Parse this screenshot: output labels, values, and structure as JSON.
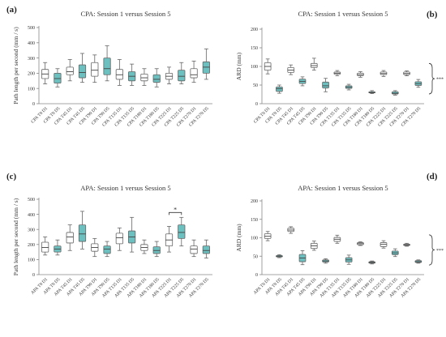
{
  "panel_labels": [
    "(a)",
    "(b)",
    "(c)",
    "(d)"
  ],
  "colors": {
    "box_white": "#ffffff",
    "box_teal": "#6cc0c0",
    "stroke": "#666666",
    "axis": "#888888"
  },
  "chart_data": [
    {
      "type": "boxplot",
      "title": "CPA: Session 1 versus Session 5",
      "ylabel": "Path length per second (mm / s)",
      "ylim": [
        0,
        500
      ],
      "yticks": [
        0,
        100,
        200,
        300,
        400,
        500
      ],
      "categories": [
        "CPA T0 D1",
        "CPA T0 D5",
        "CPA T45 D1",
        "CPA T45 D5",
        "CPA T90 D1",
        "CPA T90 D5",
        "CPA T135 D1",
        "CPA T135 D5",
        "CPA T180 D1",
        "CPA T180 D5",
        "CPA T225 D1",
        "CPA T225 D5",
        "CPA T270 D1",
        "CPA T270 D5"
      ],
      "groups": [
        "D1",
        "D5",
        "D1",
        "D5",
        "D1",
        "D5",
        "D1",
        "D5",
        "D1",
        "D5",
        "D1",
        "D5",
        "D1",
        "D5"
      ],
      "boxes": [
        {
          "min": 130,
          "q1": 165,
          "median": 195,
          "q3": 225,
          "max": 270
        },
        {
          "min": 110,
          "q1": 135,
          "median": 165,
          "q3": 200,
          "max": 230
        },
        {
          "min": 150,
          "q1": 190,
          "median": 210,
          "q3": 240,
          "max": 290
        },
        {
          "min": 140,
          "q1": 170,
          "median": 205,
          "q3": 255,
          "max": 330
        },
        {
          "min": 140,
          "q1": 180,
          "median": 220,
          "q3": 270,
          "max": 320
        },
        {
          "min": 150,
          "q1": 190,
          "median": 230,
          "q3": 300,
          "max": 380
        },
        {
          "min": 120,
          "q1": 160,
          "median": 190,
          "q3": 225,
          "max": 290
        },
        {
          "min": 120,
          "q1": 150,
          "median": 180,
          "q3": 210,
          "max": 260
        },
        {
          "min": 120,
          "q1": 150,
          "median": 170,
          "q3": 195,
          "max": 230
        },
        {
          "min": 110,
          "q1": 140,
          "median": 160,
          "q3": 190,
          "max": 230
        },
        {
          "min": 130,
          "q1": 160,
          "median": 180,
          "q3": 200,
          "max": 240
        },
        {
          "min": 130,
          "q1": 150,
          "median": 180,
          "q3": 220,
          "max": 270
        },
        {
          "min": 140,
          "q1": 170,
          "median": 190,
          "q3": 230,
          "max": 280
        },
        {
          "min": 160,
          "q1": 200,
          "median": 240,
          "q3": 275,
          "max": 360
        }
      ],
      "annotation": ""
    },
    {
      "type": "boxplot",
      "title": "CPA: Session 1 versus Session 5",
      "ylabel": "ARD (mm)",
      "ylim": [
        0,
        200
      ],
      "yticks": [
        0,
        50,
        100,
        150,
        200
      ],
      "categories": [
        "CPA T0 D1",
        "CPA T0 D5",
        "CPA T45 D1",
        "CPA T45 D5",
        "CPA T90 D1",
        "CPA T90 D5",
        "CPA T135 D1",
        "CPA T135 D5",
        "CPA T180 D1",
        "CPA T180 D5",
        "CPA T225 D1",
        "CPA T225 D5",
        "CPA T270 D1",
        "CPA T270 D5"
      ],
      "groups": [
        "D1",
        "D5",
        "D1",
        "D5",
        "D1",
        "D5",
        "D1",
        "D5",
        "D1",
        "D5",
        "D1",
        "D5",
        "D1",
        "D5"
      ],
      "boxes": [
        {
          "min": 80,
          "q1": 90,
          "median": 100,
          "q3": 110,
          "max": 120
        },
        {
          "min": 28,
          "q1": 33,
          "median": 40,
          "q3": 45,
          "max": 50
        },
        {
          "min": 78,
          "q1": 84,
          "median": 90,
          "q3": 97,
          "max": 104
        },
        {
          "min": 48,
          "q1": 54,
          "median": 60,
          "q3": 66,
          "max": 72
        },
        {
          "min": 90,
          "q1": 97,
          "median": 102,
          "q3": 108,
          "max": 122
        },
        {
          "min": 32,
          "q1": 42,
          "median": 48,
          "q3": 58,
          "max": 68
        },
        {
          "min": 75,
          "q1": 79,
          "median": 82,
          "q3": 85,
          "max": 89
        },
        {
          "min": 37,
          "q1": 41,
          "median": 44,
          "q3": 48,
          "max": 52
        },
        {
          "min": 71,
          "q1": 75,
          "median": 78,
          "q3": 82,
          "max": 86
        },
        {
          "min": 27,
          "q1": 29,
          "median": 30,
          "q3": 32,
          "max": 35
        },
        {
          "min": 73,
          "q1": 78,
          "median": 81,
          "q3": 85,
          "max": 89
        },
        {
          "min": 23,
          "q1": 26,
          "median": 28,
          "q3": 32,
          "max": 35
        },
        {
          "min": 75,
          "q1": 78,
          "median": 81,
          "q3": 85,
          "max": 88
        },
        {
          "min": 44,
          "q1": 49,
          "median": 54,
          "q3": 59,
          "max": 65
        }
      ],
      "annotation": "***"
    },
    {
      "type": "boxplot",
      "title": "APA: Session 1 versus Session 5",
      "ylabel": "Path length per second (mm / s)",
      "ylim": [
        0,
        500
      ],
      "yticks": [
        0,
        100,
        200,
        300,
        400,
        500
      ],
      "categories": [
        "APA T0 D1",
        "APA T0 D5",
        "APA T45 D1",
        "APA T45 D5",
        "APA T90 D1",
        "APA T90 D5",
        "APA T135 D1",
        "APA T135 D5",
        "APA T180 D1",
        "APA T180 D5",
        "APA T225 D1",
        "APA T225 D5",
        "APA T270 D1",
        "APA T270 D5"
      ],
      "groups": [
        "D1",
        "D5",
        "D1",
        "D5",
        "D1",
        "D5",
        "D1",
        "D5",
        "D1",
        "D5",
        "D1",
        "D5",
        "D1",
        "D5"
      ],
      "boxes": [
        {
          "min": 130,
          "q1": 150,
          "median": 180,
          "q3": 215,
          "max": 250
        },
        {
          "min": 130,
          "q1": 150,
          "median": 170,
          "q3": 190,
          "max": 230
        },
        {
          "min": 160,
          "q1": 210,
          "median": 250,
          "q3": 280,
          "max": 330
        },
        {
          "min": 170,
          "q1": 220,
          "median": 270,
          "q3": 330,
          "max": 420
        },
        {
          "min": 120,
          "q1": 155,
          "median": 180,
          "q3": 205,
          "max": 240
        },
        {
          "min": 120,
          "q1": 140,
          "median": 170,
          "q3": 190,
          "max": 220
        },
        {
          "min": 160,
          "q1": 205,
          "median": 245,
          "q3": 275,
          "max": 310
        },
        {
          "min": 150,
          "q1": 210,
          "median": 250,
          "q3": 290,
          "max": 380
        },
        {
          "min": 140,
          "q1": 160,
          "median": 180,
          "q3": 200,
          "max": 230
        },
        {
          "min": 120,
          "q1": 140,
          "median": 160,
          "q3": 185,
          "max": 220
        },
        {
          "min": 150,
          "q1": 190,
          "median": 230,
          "q3": 270,
          "max": 320
        },
        {
          "min": 190,
          "q1": 240,
          "median": 280,
          "q3": 330,
          "max": 380
        },
        {
          "min": 120,
          "q1": 140,
          "median": 170,
          "q3": 190,
          "max": 230
        },
        {
          "min": 110,
          "q1": 140,
          "median": 160,
          "q3": 190,
          "max": 230
        }
      ],
      "annotation": "*",
      "annotation_span": [
        10,
        11
      ]
    },
    {
      "type": "boxplot",
      "title": "APA: Session 1 versus Session 5",
      "ylabel": "ARD (mm)",
      "ylim": [
        0,
        200
      ],
      "yticks": [
        0,
        50,
        100,
        150,
        200
      ],
      "categories": [
        "APA T0 D1",
        "APA T0 D5",
        "APA T45 D1",
        "APA T45 D5",
        "APA T90 D1",
        "APA T90 D5",
        "APA T135 D1",
        "APA T135 D5",
        "APA T180 D1",
        "APA T180 D5",
        "APA T225 D1",
        "APA T225 D5",
        "APA T270 D1",
        "APA T270 D5"
      ],
      "groups": [
        "D1",
        "D5",
        "D1",
        "D5",
        "D1",
        "D5",
        "D1",
        "D5",
        "D1",
        "D5",
        "D1",
        "D5",
        "D1",
        "D5"
      ],
      "boxes": [
        {
          "min": 92,
          "q1": 98,
          "median": 104,
          "q3": 111,
          "max": 117
        },
        {
          "min": 46,
          "q1": 48,
          "median": 50,
          "q3": 52,
          "max": 54
        },
        {
          "min": 112,
          "q1": 117,
          "median": 121,
          "q3": 126,
          "max": 130
        },
        {
          "min": 27,
          "q1": 35,
          "median": 45,
          "q3": 55,
          "max": 65
        },
        {
          "min": 66,
          "q1": 71,
          "median": 78,
          "q3": 85,
          "max": 91
        },
        {
          "min": 31,
          "q1": 34,
          "median": 37,
          "q3": 40,
          "max": 43
        },
        {
          "min": 85,
          "q1": 90,
          "median": 96,
          "q3": 101,
          "max": 107
        },
        {
          "min": 28,
          "q1": 34,
          "median": 40,
          "q3": 46,
          "max": 53
        },
        {
          "min": 79,
          "q1": 81,
          "median": 84,
          "q3": 87,
          "max": 89
        },
        {
          "min": 29,
          "q1": 31,
          "median": 33,
          "q3": 35,
          "max": 37
        },
        {
          "min": 72,
          "q1": 76,
          "median": 82,
          "q3": 87,
          "max": 92
        },
        {
          "min": 49,
          "q1": 54,
          "median": 59,
          "q3": 64,
          "max": 70
        },
        {
          "min": 77,
          "q1": 79,
          "median": 81,
          "q3": 83,
          "max": 85
        },
        {
          "min": 31,
          "q1": 33,
          "median": 35,
          "q3": 38,
          "max": 40
        }
      ],
      "annotation": "***"
    }
  ]
}
